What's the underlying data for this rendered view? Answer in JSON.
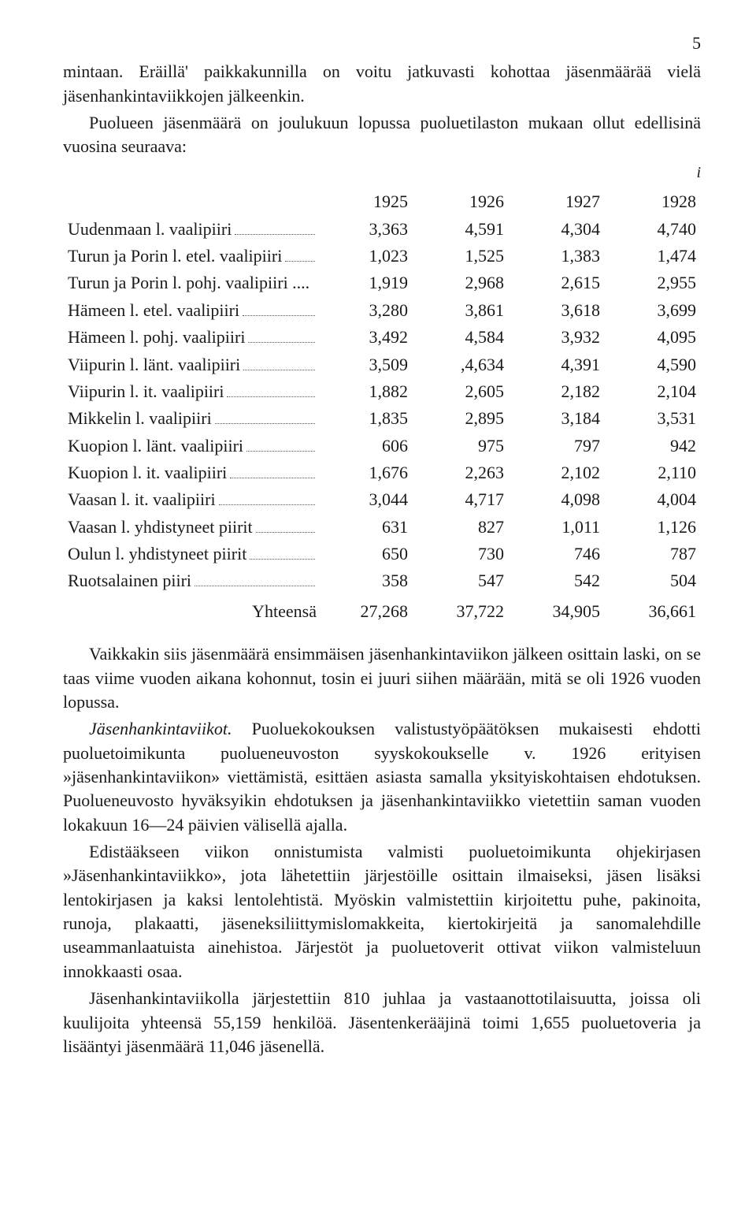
{
  "page_number": "5",
  "para1": "mintaan. Eräillä' paikkakunnilla on voitu jatkuvasti kohottaa jäsenmäärää vielä jäsenhankintaviikkojen jälkeenkin.",
  "para2": "Puolueen jäsenmäärä on joulukuun lopussa puoluetilaston mukaan ollut edellisinä vuosina seuraava:",
  "note_i": "i",
  "table": {
    "years": [
      "1925",
      "1926",
      "1927",
      "1928"
    ],
    "rows": [
      {
        "label": "Uudenmaan l. vaalipiiri",
        "v": [
          "3,363",
          "4,591",
          "4,304",
          "4,740"
        ]
      },
      {
        "label": "Turun ja Porin l. etel. vaalipiiri",
        "v": [
          "1,023",
          "1,525",
          "1,383",
          "1,474"
        ]
      },
      {
        "label": "Turun ja Porin l. pohj. vaalipiiri ....",
        "v": [
          "1,919",
          "2,968",
          "2,615",
          "2,955"
        ],
        "nodots": true
      },
      {
        "label": "Hämeen l. etel. vaalipiiri",
        "v": [
          "3,280",
          "3,861",
          "3,618",
          "3,699"
        ]
      },
      {
        "label": "Hämeen l. pohj. vaalipiiri",
        "v": [
          "3,492",
          "4,584",
          "3,932",
          "4,095"
        ]
      },
      {
        "label": "Viipurin l. länt. vaalipiiri",
        "v": [
          "3,509",
          ",4,634",
          "4,391",
          "4,590"
        ]
      },
      {
        "label": "Viipurin l. it. vaalipiiri",
        "v": [
          "1,882",
          "2,605",
          "2,182",
          "2,104"
        ]
      },
      {
        "label": "Mikkelin l. vaalipiiri",
        "v": [
          "1,835",
          "2,895",
          "3,184",
          "3,531"
        ]
      },
      {
        "label": "Kuopion l. länt. vaalipiiri",
        "v": [
          "606",
          "975",
          "797",
          "942"
        ]
      },
      {
        "label": "Kuopion l. it. vaalipiiri",
        "v": [
          "1,676",
          "2,263",
          "2,102",
          "2,110"
        ]
      },
      {
        "label": "Vaasan l. it. vaalipiiri",
        "v": [
          "3,044",
          "4,717",
          "4,098",
          "4,004"
        ]
      },
      {
        "label": "Vaasan l. yhdistyneet piirit",
        "v": [
          "631",
          "827",
          "1,011",
          "1,126"
        ]
      },
      {
        "label": "Oulun l. yhdistyneet piirit",
        "v": [
          "650",
          "730",
          "746",
          "787"
        ]
      },
      {
        "label": "Ruotsalainen piiri",
        "v": [
          "358",
          "547",
          "542",
          "504"
        ]
      }
    ],
    "total_label": "Yhteensä",
    "totals": [
      "27,268",
      "37,722",
      "34,905",
      "36,661"
    ]
  },
  "para3": "Vaikkakin siis jäsenmäärä ensimmäisen jäsenhankintaviikon jälkeen osittain laski, on se taas viime vuoden aikana kohonnut, tosin ei juuri siihen määrään, mitä se oli 1926 vuoden lopussa.",
  "para4_lead_italic": "Jäsenhankintaviikot.",
  "para4_rest": "  Puoluekokouksen valistustyöpäätöksen mukaisesti ehdotti puoluetoimikunta puolueneuvoston syyskokoukselle v. 1926 erityisen »jäsenhankintaviikon» viettämistä, esittäen asiasta samalla yksityiskohtaisen ehdotuksen.  Puolueneuvosto hyväksyikin ehdotuksen ja jäsenhankintaviikko vietettiin saman vuoden lokakuun 16—24 päivien välisellä ajalla.",
  "para5": "Edistääkseen viikon onnistumista valmisti puoluetoimikunta ohjekirjasen »Jäsenhankintaviikko», jota lähetettiin järjestöille osittain ilmaiseksi, jäsen lisäksi lentokirjasen ja kaksi lentolehtistä. Myöskin valmistettiin kirjoitettu puhe, pakinoita, runoja, plakaatti, jäseneksiliittymislomakkeita, kiertokirjeitä ja sanomalehdille useammanlaatuista ainehistoa.  Järjestöt ja puoluetoverit ottivat viikon valmisteluun innokkaasti osaa.",
  "para6": "Jäsenhankintaviikolla järjestettiin 810 juhlaa ja vastaanottotilaisuutta, joissa oli kuulijoita yhteensä 55,159 henkilöä.  Jäsentenkerääjinä toimi 1,655 puoluetoveria ja lisääntyi jäsenmäärä 11,046 jäsenellä."
}
